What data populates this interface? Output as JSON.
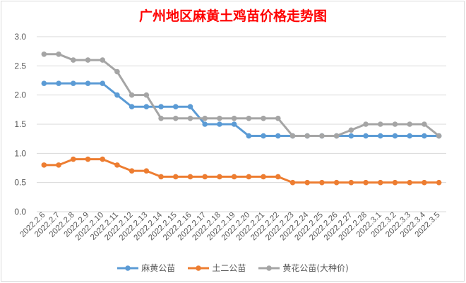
{
  "chart_data": {
    "type": "line",
    "title": "广州地区麻黄土鸡苗价格走势图",
    "xlabel": "",
    "ylabel": "",
    "ylim": [
      0.0,
      3.0
    ],
    "yticks": [
      "0.0",
      "0.5",
      "1.0",
      "1.5",
      "2.0",
      "2.5",
      "3.0"
    ],
    "grid": true,
    "legend": "bottom",
    "categories": [
      "2022.2.6",
      "2022.2.7",
      "2022.2.8",
      "2022.2.9",
      "2022.2.10",
      "2022.2.11",
      "2022.2.12",
      "2022.2.13",
      "2022.2.14",
      "2022.2.15",
      "2022.2.16",
      "2022.2.17",
      "2022.2.18",
      "2022.2.19",
      "2022.2.20",
      "2022.2.21",
      "2022.2.22",
      "2022.2.23",
      "2022.2.24",
      "2022.2.25",
      "2022.2.26",
      "2022.2.27",
      "2022.2.28",
      "2022.3.1",
      "2022.3.2",
      "2022.3.3",
      "2022.3.4",
      "2022.3.5"
    ],
    "series": [
      {
        "name": "麻黄公苗",
        "color": "#5b9bd5",
        "values": [
          2.2,
          2.2,
          2.2,
          2.2,
          2.2,
          2.0,
          1.8,
          1.8,
          1.8,
          1.8,
          1.8,
          1.5,
          1.5,
          1.5,
          1.3,
          1.3,
          1.3,
          1.3,
          1.3,
          1.3,
          1.3,
          1.3,
          1.3,
          1.3,
          1.3,
          1.3,
          1.3,
          1.3
        ]
      },
      {
        "name": "土二公苗",
        "color": "#ed7d31",
        "values": [
          0.8,
          0.8,
          0.9,
          0.9,
          0.9,
          0.8,
          0.7,
          0.7,
          0.6,
          0.6,
          0.6,
          0.6,
          0.6,
          0.6,
          0.6,
          0.6,
          0.6,
          0.5,
          0.5,
          0.5,
          0.5,
          0.5,
          0.5,
          0.5,
          0.5,
          0.5,
          0.5,
          0.5
        ]
      },
      {
        "name": "黄花公苗(大种价)",
        "color": "#a5a5a5",
        "values": [
          2.7,
          2.7,
          2.6,
          2.6,
          2.6,
          2.4,
          2.0,
          2.0,
          1.6,
          1.6,
          1.6,
          1.6,
          1.6,
          1.6,
          1.6,
          1.6,
          1.6,
          1.3,
          1.3,
          1.3,
          1.3,
          1.4,
          1.5,
          1.5,
          1.5,
          1.5,
          1.5,
          1.3
        ]
      }
    ]
  }
}
